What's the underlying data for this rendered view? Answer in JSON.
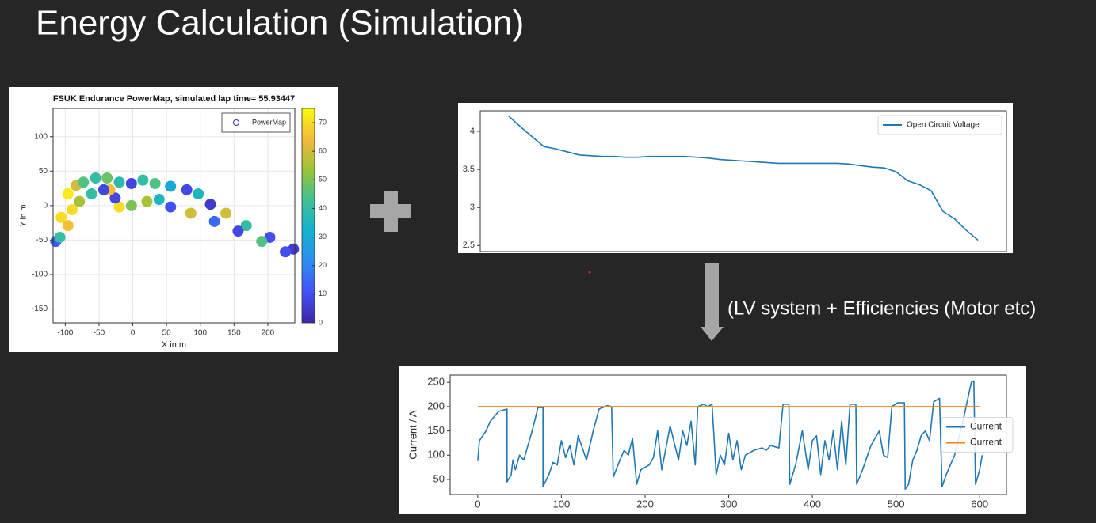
{
  "slide_title": "Energy Calculation (Simulation)",
  "annotation": "(LV system + Efficiencies (Motor etc)",
  "chart_data": [
    {
      "type": "scatter",
      "title": "FSUK Endurance PowerMap, simulated lap time= 55.93447",
      "xlabel": "X in m",
      "ylabel": "Y in m",
      "series": [
        {
          "name": "PowerMap",
          "x": [
            -114,
            -106,
            -96,
            -84,
            -73,
            -55,
            -38,
            -20,
            -2,
            15,
            33,
            56,
            80,
            97,
            115,
            138,
            168,
            203,
            238,
            226,
            191,
            156,
            121,
            86,
            56,
            39,
            21,
            -2,
            -20,
            -26,
            -34,
            -43,
            -61,
            -79,
            -90,
            -96,
            -108
          ],
          "values": [
            -52,
            -17,
            17,
            29,
            34,
            40,
            40,
            34,
            32,
            37,
            32,
            28,
            23,
            17,
            2,
            -11,
            -29,
            -46,
            -63,
            -67,
            -52,
            -37,
            -23,
            -11,
            -2,
            9,
            6,
            0,
            -2,
            11,
            23,
            23,
            17,
            6,
            -6,
            -29,
            -46
          ],
          "power": [
            12,
            70,
            72,
            60,
            45,
            40,
            48,
            38,
            8,
            40,
            45,
            30,
            8,
            35,
            5,
            60,
            40,
            10,
            5,
            10,
            45,
            8,
            15,
            60,
            10,
            35,
            55,
            50,
            70,
            8,
            65,
            8,
            40,
            55,
            70,
            65,
            40
          ]
        }
      ],
      "xlim": [
        -118,
        240
      ],
      "ylim": [
        -170,
        141
      ],
      "xticks": [
        -100,
        -50,
        0,
        50,
        100,
        150,
        200
      ],
      "yticks": [
        -150,
        -100,
        -50,
        0,
        50,
        100
      ],
      "grid": true,
      "legend": "upper right",
      "colorbar": {
        "lim": [
          0,
          75
        ],
        "ticks": [
          0,
          10,
          20,
          30,
          40,
          50,
          60,
          70
        ],
        "colormap": [
          "#3e26a8",
          "#4352f5",
          "#2d8ef0",
          "#12b1cf",
          "#3fc193",
          "#9ac437",
          "#f4b93a",
          "#f9fb0e"
        ]
      }
    },
    {
      "type": "line",
      "series": [
        {
          "name": "Open Circuit Voltage",
          "color": "#1f77b4",
          "values": [
            4.2,
            4.06,
            3.93,
            3.8,
            3.77,
            3.73,
            3.69,
            3.68,
            3.67,
            3.67,
            3.66,
            3.66,
            3.67,
            3.67,
            3.67,
            3.67,
            3.66,
            3.65,
            3.63,
            3.62,
            3.61,
            3.6,
            3.59,
            3.58,
            3.58,
            3.58,
            3.58,
            3.58,
            3.58,
            3.57,
            3.55,
            3.53,
            3.52,
            3.47,
            3.35,
            3.3,
            3.22,
            2.95,
            2.85,
            2.7,
            2.57
          ]
        }
      ],
      "ylim": [
        2.42,
        4.27
      ],
      "yticks": [
        2.5,
        3.0,
        3.5,
        4.0
      ],
      "grid": false,
      "legend": "upper right"
    },
    {
      "type": "line",
      "ylabel": "Current / A",
      "series": [
        {
          "name": "Current",
          "color": "#1f77b4",
          "x": [
            0,
            2,
            10,
            15,
            25,
            35,
            35,
            40,
            42,
            45,
            50,
            55,
            65,
            72,
            78,
            78,
            85,
            90,
            95,
            100,
            105,
            110,
            115,
            120,
            130,
            138,
            145,
            155,
            160,
            162,
            170,
            175,
            180,
            185,
            190,
            195,
            205,
            210,
            215,
            220,
            230,
            240,
            245,
            250,
            255,
            260,
            263,
            270,
            275,
            280,
            282,
            285,
            290,
            295,
            300,
            305,
            310,
            315,
            320,
            330,
            340,
            345,
            350,
            360,
            365,
            372,
            373,
            380,
            388,
            395,
            400,
            405,
            410,
            415,
            420,
            425,
            430,
            435,
            440,
            445,
            452,
            453,
            460,
            470,
            480,
            485,
            490,
            495,
            502,
            510,
            511,
            515,
            520,
            525,
            530,
            535,
            540,
            545,
            552,
            555,
            560,
            570,
            580,
            590,
            593,
            595,
            600,
            603
          ],
          "values": [
            88,
            130,
            150,
            170,
            190,
            195,
            45,
            60,
            90,
            70,
            100,
            90,
            150,
            198,
            198,
            35,
            60,
            85,
            80,
            130,
            95,
            120,
            80,
            140,
            90,
            150,
            195,
            202,
            200,
            55,
            90,
            110,
            100,
            135,
            40,
            70,
            80,
            95,
            150,
            70,
            160,
            90,
            150,
            120,
            170,
            80,
            200,
            205,
            200,
            205,
            150,
            60,
            100,
            80,
            145,
            90,
            130,
            70,
            100,
            110,
            115,
            110,
            120,
            115,
            205,
            205,
            40,
            80,
            150,
            70,
            130,
            140,
            60,
            130,
            90,
            150,
            70,
            170,
            80,
            205,
            205,
            40,
            70,
            120,
            150,
            100,
            95,
            200,
            208,
            208,
            30,
            40,
            90,
            110,
            140,
            150,
            130,
            210,
            217,
            35,
            60,
            100,
            170,
            250,
            253,
            40,
            70,
            100
          ]
        },
        {
          "name": "Current",
          "color": "#ff7f0e",
          "x": [
            0,
            600
          ],
          "values": [
            200,
            200
          ]
        }
      ],
      "xlim": [
        -33,
        632
      ],
      "ylim": [
        19,
        265
      ],
      "xticks": [
        0,
        100,
        200,
        300,
        400,
        500,
        600
      ],
      "yticks": [
        50,
        100,
        150,
        200,
        250
      ],
      "grid": false,
      "legend": "center right"
    }
  ]
}
